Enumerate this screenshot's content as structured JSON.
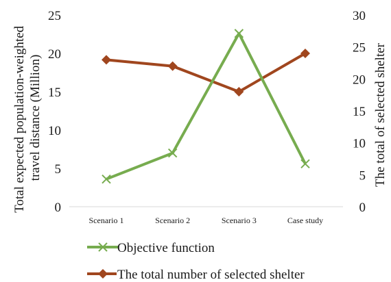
{
  "chart_data": {
    "type": "line",
    "categories": [
      "Scenario 1",
      "Scenario 2",
      "Scenario 3",
      "Case study"
    ],
    "ylabel_left": [
      "Total expected population-weighted",
      "travel distance  (Million)"
    ],
    "ylabel_right": "The total of selected shelter",
    "ylim_left": [
      0,
      25
    ],
    "ylim_right": [
      0,
      30
    ],
    "yticks_left": [
      "0",
      "5",
      "10",
      "15",
      "20",
      "25"
    ],
    "yticks_right": [
      "0",
      "5",
      "10",
      "15",
      "20",
      "25",
      "30"
    ],
    "grid": false,
    "legend_position": "bottom",
    "series": [
      {
        "name": "Objective function",
        "axis": "left",
        "values": [
          3.6,
          7.0,
          22.6,
          5.6
        ],
        "color": "#77ac4f",
        "marker": "x-icon"
      },
      {
        "name": "The total number of selected shelter",
        "axis": "right",
        "values": [
          23,
          22,
          18,
          24
        ],
        "color": "#a0461e",
        "marker": "diamond-icon"
      }
    ]
  }
}
